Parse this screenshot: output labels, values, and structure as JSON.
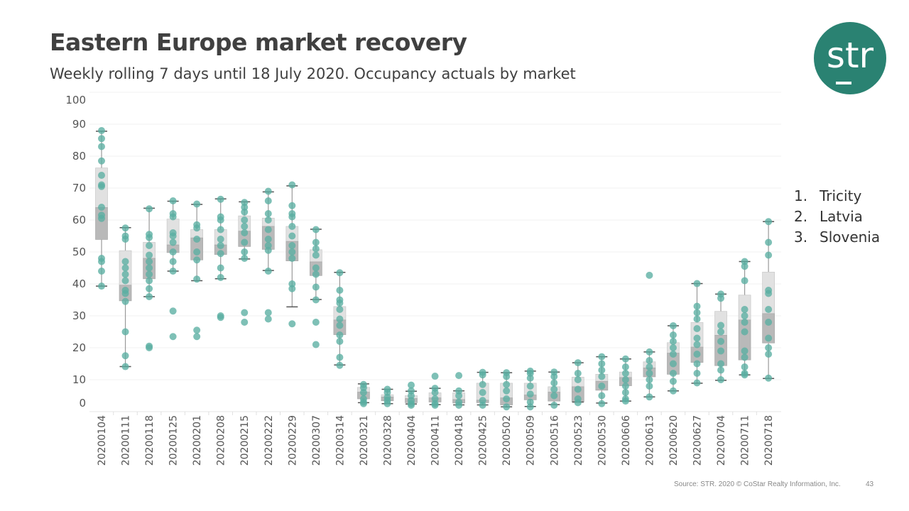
{
  "title": "Eastern Europe market recovery",
  "subtitle": "Weekly rolling 7 days until 18 July 2020. Occupancy actuals by market",
  "logo_text": "str",
  "legend": [
    {
      "num": "1.",
      "label": "Tricity"
    },
    {
      "num": "2.",
      "label": "Latvia"
    },
    {
      "num": "3.",
      "label": "Slovenia"
    }
  ],
  "footer": {
    "source": "Source: STR. 2020 © CoStar Realty Information, Inc.",
    "page": "43"
  },
  "colors": {
    "brand": "#2a8272",
    "points": "#5aaea2",
    "box_upper": "#e1e1e1",
    "box_lower": "#b9b9b9",
    "whisker": "#555555"
  },
  "chart_data": {
    "type": "boxplot",
    "title": "",
    "xlabel": "",
    "ylabel": "",
    "ylim": [
      0,
      100
    ],
    "yticks": [
      0,
      10,
      20,
      30,
      40,
      50,
      60,
      70,
      80,
      90,
      100
    ],
    "grid": true,
    "categories": [
      "20200104",
      "20200111",
      "20200118",
      "20200125",
      "20200201",
      "20200208",
      "20200215",
      "20200222",
      "20200229",
      "20200307",
      "20200314",
      "20200321",
      "20200328",
      "20200404",
      "20200411",
      "20200418",
      "20200425",
      "20200502",
      "20200509",
      "20200516",
      "20200523",
      "20200530",
      "20200606",
      "20200613",
      "20200620",
      "20200627",
      "20200704",
      "20200711",
      "20200718"
    ],
    "boxes": [
      {
        "low": 39.3,
        "q1": 53.9,
        "median": 63.9,
        "q3": 76.3,
        "high": 87.8
      },
      {
        "low": 14.1,
        "q1": 34.7,
        "median": 39.6,
        "q3": 50.4,
        "high": 57.6
      },
      {
        "low": 36.0,
        "q1": 41.6,
        "median": 48.0,
        "q3": 53.0,
        "high": 63.7
      },
      {
        "low": 44.0,
        "q1": 49.8,
        "median": 52.2,
        "q3": 60.3,
        "high": 65.9
      },
      {
        "low": 41.0,
        "q1": 47.5,
        "median": 54.4,
        "q3": 57.0,
        "high": 64.9
      },
      {
        "low": 41.6,
        "q1": 49.2,
        "median": 52.2,
        "q3": 57.0,
        "high": 66.6
      },
      {
        "low": 47.8,
        "q1": 51.7,
        "median": 56.5,
        "q3": 61.3,
        "high": 65.7
      },
      {
        "low": 44.2,
        "q1": 50.8,
        "median": 58.0,
        "q3": 60.6,
        "high": 68.8
      },
      {
        "low": 32.8,
        "q1": 47.2,
        "median": 53.3,
        "q3": 58.0,
        "high": 70.7
      },
      {
        "low": 35.1,
        "q1": 42.6,
        "median": 46.9,
        "q3": 50.7,
        "high": 57.1
      },
      {
        "low": 14.6,
        "q1": 24.1,
        "median": 28.7,
        "q3": 32.9,
        "high": 43.6
      },
      {
        "low": 2.8,
        "q1": 4.0,
        "median": 6.1,
        "q3": 7.6,
        "high": 8.7
      },
      {
        "low": 2.5,
        "q1": 3.4,
        "median": 4.6,
        "q3": 5.3,
        "high": 7.0
      },
      {
        "low": 2.4,
        "q1": 2.8,
        "median": 4.1,
        "q3": 5.0,
        "high": 6.4
      },
      {
        "low": 2.2,
        "q1": 3.0,
        "median": 4.3,
        "q3": 5.9,
        "high": 7.3
      },
      {
        "low": 2.1,
        "q1": 2.7,
        "median": 3.8,
        "q3": 5.9,
        "high": 6.5
      },
      {
        "low": 2.1,
        "q1": 2.8,
        "median": 3.6,
        "q3": 8.9,
        "high": 12.3
      },
      {
        "low": 1.5,
        "q1": 2.1,
        "median": 4.3,
        "q3": 8.9,
        "high": 12.2
      },
      {
        "low": 1.6,
        "q1": 3.7,
        "median": 5.2,
        "q3": 8.9,
        "high": 12.7
      },
      {
        "low": 2.2,
        "q1": 3.3,
        "median": 6.1,
        "q3": 7.8,
        "high": 12.4
      },
      {
        "low": 3.0,
        "q1": 3.0,
        "median": 7.8,
        "q3": 10.8,
        "high": 15.3
      },
      {
        "low": 2.7,
        "q1": 6.7,
        "median": 9.5,
        "q3": 11.7,
        "high": 17.2
      },
      {
        "low": 3.3,
        "q1": 8.1,
        "median": 10.7,
        "q3": 12.4,
        "high": 16.5
      },
      {
        "low": 4.6,
        "q1": 10.9,
        "median": 13.7,
        "q3": 15.6,
        "high": 18.7
      },
      {
        "low": 6.5,
        "q1": 11.7,
        "median": 18.3,
        "q3": 21.6,
        "high": 26.9
      },
      {
        "low": 8.9,
        "q1": 15.4,
        "median": 20.2,
        "q3": 27.9,
        "high": 40.1
      },
      {
        "low": 9.8,
        "q1": 14.4,
        "median": 23.9,
        "q3": 31.4,
        "high": 36.8
      },
      {
        "low": 11.5,
        "q1": 16.2,
        "median": 28.7,
        "q3": 36.5,
        "high": 47.0
      },
      {
        "low": 10.4,
        "q1": 21.5,
        "median": 30.7,
        "q3": 43.7,
        "high": 59.5
      }
    ],
    "points": [
      [
        88,
        85.5,
        83,
        78.5,
        74,
        71,
        70.5,
        64,
        61.5,
        60.5,
        48,
        47,
        44,
        39.3
      ],
      [
        57.5,
        55,
        54,
        47,
        45,
        43,
        41,
        38,
        37,
        34.5,
        25,
        17.5,
        14.1
      ],
      [
        63.5,
        55.5,
        54.5,
        52,
        49,
        47,
        45,
        43,
        41,
        38.5,
        36,
        20.5,
        20
      ],
      [
        66,
        62,
        61,
        56,
        55,
        53,
        50,
        47,
        44,
        31.5,
        23.5
      ],
      [
        65,
        58.5,
        57.5,
        54,
        50,
        47.5,
        41.5,
        25.5,
        23.5
      ],
      [
        66.5,
        61,
        60,
        57,
        54,
        52,
        49.5,
        45,
        42,
        30,
        29.5
      ],
      [
        65.5,
        64,
        62.5,
        60,
        58,
        56,
        53,
        50,
        48,
        31,
        28
      ],
      [
        69,
        66,
        62,
        60,
        57,
        54,
        52,
        50.5,
        44,
        31,
        29
      ],
      [
        71,
        64.5,
        62,
        61,
        58,
        55,
        52,
        50,
        48,
        40,
        38.5,
        27.5
      ],
      [
        57,
        53,
        51,
        49,
        45,
        43,
        39,
        35,
        28,
        21
      ],
      [
        43.5,
        38,
        35,
        34,
        32,
        29,
        27,
        24,
        22,
        17,
        14.5
      ],
      [
        8.5,
        7.5,
        6,
        4,
        3,
        2.5
      ],
      [
        7,
        6,
        4.5,
        3.5,
        2.5
      ],
      [
        8.3,
        6.5,
        5,
        3.5,
        2.5,
        2
      ],
      [
        11.1,
        7.3,
        6,
        4,
        2.5,
        2
      ],
      [
        11.3,
        6.5,
        5,
        3,
        2
      ],
      [
        12.3,
        11.5,
        8.5,
        6,
        3.5,
        2
      ],
      [
        12.2,
        11,
        8.5,
        6.5,
        4,
        1.5
      ],
      [
        12.7,
        12,
        10.5,
        8,
        5.5,
        3,
        1.5
      ],
      [
        12.4,
        11,
        9,
        7,
        5,
        2
      ],
      [
        15.3,
        12,
        10,
        7,
        4,
        2.8
      ],
      [
        17.2,
        15,
        13,
        11,
        8,
        5,
        2.5
      ],
      [
        16.5,
        14,
        12,
        10,
        8,
        6,
        4,
        3.3
      ],
      [
        42.7,
        18.7,
        16,
        14,
        12,
        10,
        8,
        4.6
      ],
      [
        26.9,
        24,
        22,
        20,
        18,
        15,
        12,
        9.5,
        6.5
      ],
      [
        40.1,
        33,
        31,
        29,
        26,
        23,
        21,
        18,
        15,
        12,
        9
      ],
      [
        36.8,
        35.5,
        27,
        25,
        22,
        19,
        15,
        13,
        10
      ],
      [
        47,
        45.5,
        41,
        32,
        30,
        28,
        25,
        19,
        17,
        14,
        12,
        11.5
      ],
      [
        59.5,
        53,
        49,
        38,
        37,
        32,
        28,
        23,
        20,
        18,
        10.5
      ]
    ]
  }
}
